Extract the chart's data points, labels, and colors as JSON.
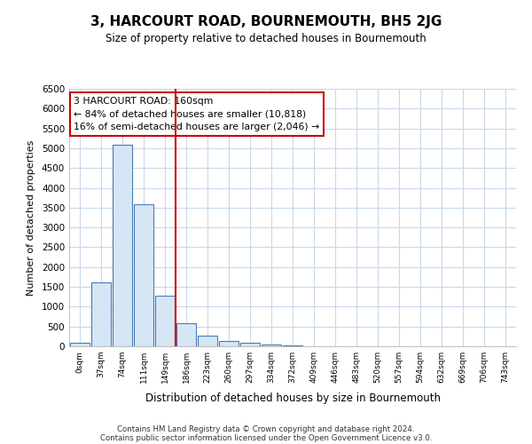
{
  "title": "3, HARCOURT ROAD, BOURNEMOUTH, BH5 2JG",
  "subtitle": "Size of property relative to detached houses in Bournemouth",
  "xlabel": "Distribution of detached houses by size in Bournemouth",
  "ylabel": "Number of detached properties",
  "bar_color": "#d6e6f5",
  "bar_edge_color": "#4a7ab5",
  "marker_color": "#cc0000",
  "categories": [
    "0sqm",
    "37sqm",
    "74sqm",
    "111sqm",
    "149sqm",
    "186sqm",
    "223sqm",
    "260sqm",
    "297sqm",
    "334sqm",
    "372sqm",
    "409sqm",
    "446sqm",
    "483sqm",
    "520sqm",
    "557sqm",
    "594sqm",
    "632sqm",
    "669sqm",
    "706sqm",
    "743sqm"
  ],
  "values": [
    80,
    1620,
    5080,
    3580,
    1280,
    580,
    260,
    130,
    90,
    50,
    30,
    0,
    0,
    0,
    0,
    0,
    0,
    0,
    0,
    0,
    0
  ],
  "ylim": [
    0,
    6500
  ],
  "yticks": [
    0,
    500,
    1000,
    1500,
    2000,
    2500,
    3000,
    3500,
    4000,
    4500,
    5000,
    5500,
    6000,
    6500
  ],
  "annotation_text": "3 HARCOURT ROAD: 160sqm\n← 84% of detached houses are smaller (10,818)\n16% of semi-detached houses are larger (2,046) →",
  "footer1": "Contains HM Land Registry data © Crown copyright and database right 2024.",
  "footer2": "Contains public sector information licensed under the Open Government Licence v3.0.",
  "bg_color": "#ffffff",
  "plot_bg_color": "#ffffff",
  "grid_color": "#c8d8ea"
}
